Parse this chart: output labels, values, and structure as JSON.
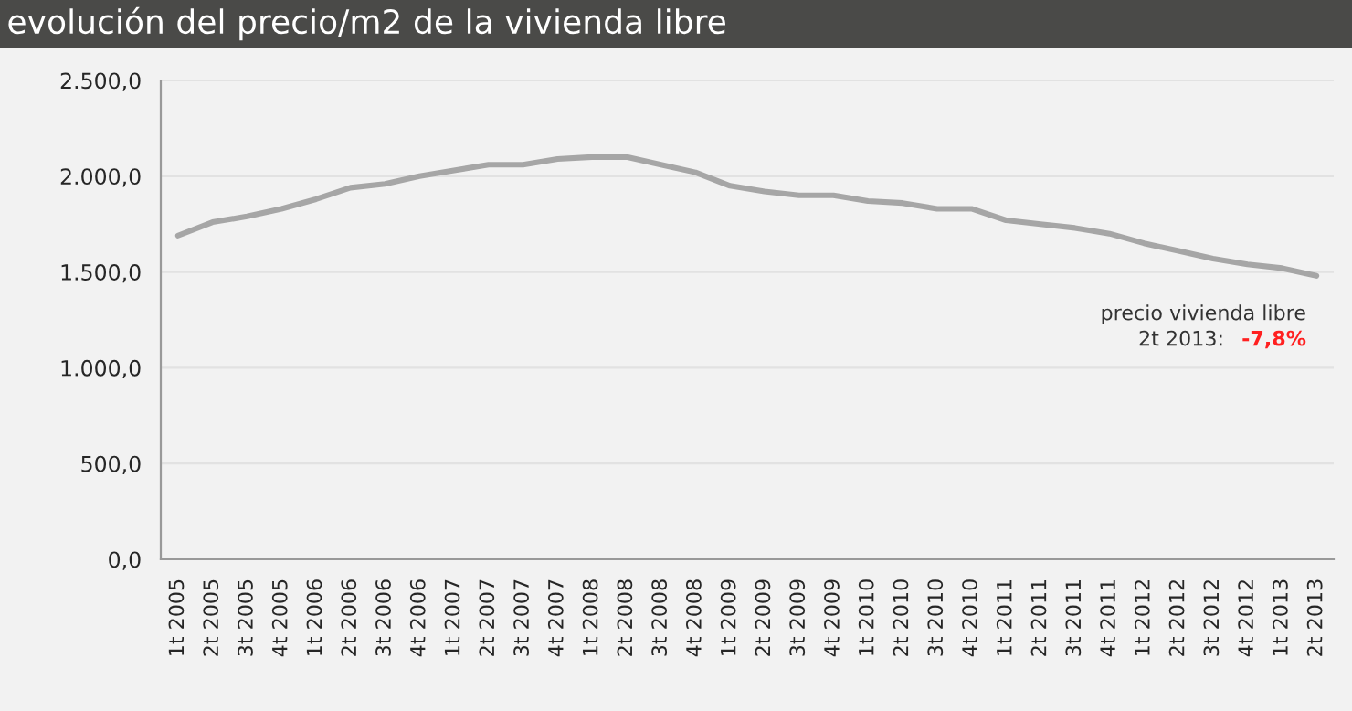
{
  "chart_data": {
    "type": "line",
    "title": "evolución del precio/m2 de la vivienda libre",
    "categories": [
      "1t 2005",
      "2t 2005",
      "3t 2005",
      "4t 2005",
      "1t 2006",
      "2t 2006",
      "3t 2006",
      "4t 2006",
      "1t 2007",
      "2t 2007",
      "3t 2007",
      "4t 2007",
      "1t 2008",
      "2t 2008",
      "3t 2008",
      "4t 2008",
      "1t 2009",
      "2t 2009",
      "3t 2009",
      "4t 2009",
      "1t 2010",
      "2t 2010",
      "3t 2010",
      "4t 2010",
      "1t 2011",
      "2t 2011",
      "3t 2011",
      "4t 2011",
      "1t 2012",
      "2t 2012",
      "3t 2012",
      "4t 2012",
      "1t 2013",
      "2t 2013"
    ],
    "series": [
      {
        "color": "#a6a6a6",
        "values": [
          1690,
          1760,
          1790,
          1830,
          1880,
          1940,
          1960,
          2000,
          2030,
          2060,
          2060,
          2090,
          2100,
          2100,
          2060,
          2020,
          1950,
          1920,
          1900,
          1900,
          1870,
          1860,
          1830,
          1830,
          1770,
          1750,
          1730,
          1700,
          1650,
          1610,
          1570,
          1540,
          1520,
          1480
        ]
      }
    ],
    "ylim": [
      0,
      2500
    ],
    "yticks": [
      {
        "value": 0,
        "label": "0,0"
      },
      {
        "value": 500,
        "label": "500,0"
      },
      {
        "value": 1000,
        "label": "1.000,0"
      },
      {
        "value": 1500,
        "label": "1.500,0"
      },
      {
        "value": 2000,
        "label": "2.000,0"
      },
      {
        "value": 2500,
        "label": "2.500,0"
      }
    ],
    "grid": "y",
    "legend": false,
    "marker": "none",
    "line_style": "solid",
    "annotations": [
      "precio vivienda libre",
      "2t 2013:",
      "-7,8%"
    ]
  }
}
